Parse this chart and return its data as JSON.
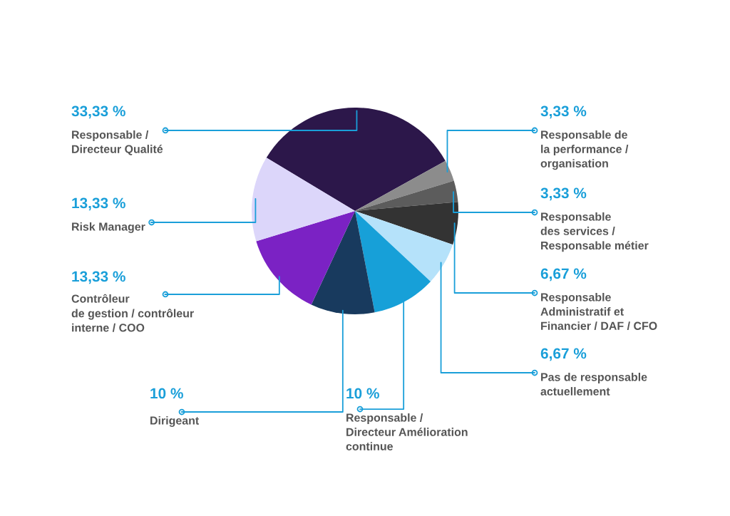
{
  "chart_data": {
    "type": "pie",
    "categories": [
      "Responsable /\nDirecteur Qualité",
      "Responsable de\nla performance /\norganisation",
      "Responsable\ndes services /\nResponsable métier",
      "Responsable\nAdministratif et\nFinancier / DAF / CFO",
      "Pas de responsable\nactuellement",
      "Responsable /\nDirecteur Amélioration\ncontinue",
      "Dirigeant",
      "Contrôleur\nde gestion / contrôleur\ninterne / COO",
      "Risk Manager"
    ],
    "values": [
      33.33,
      3.33,
      3.33,
      6.67,
      6.67,
      10,
      10,
      13.33,
      13.33
    ],
    "value_labels": [
      "33,33 %",
      "3,33 %",
      "3,33 %",
      "6,67 %",
      "6,67 %",
      "10 %",
      "10 %",
      "13,33 %",
      "13,33 %"
    ],
    "colors": [
      "#2c174a",
      "#8c8c8c",
      "#5c5c5c",
      "#333333",
      "#b5e2fa",
      "#17a0d8",
      "#183a5e",
      "#7b22c4",
      "#dcd6fa"
    ]
  }
}
